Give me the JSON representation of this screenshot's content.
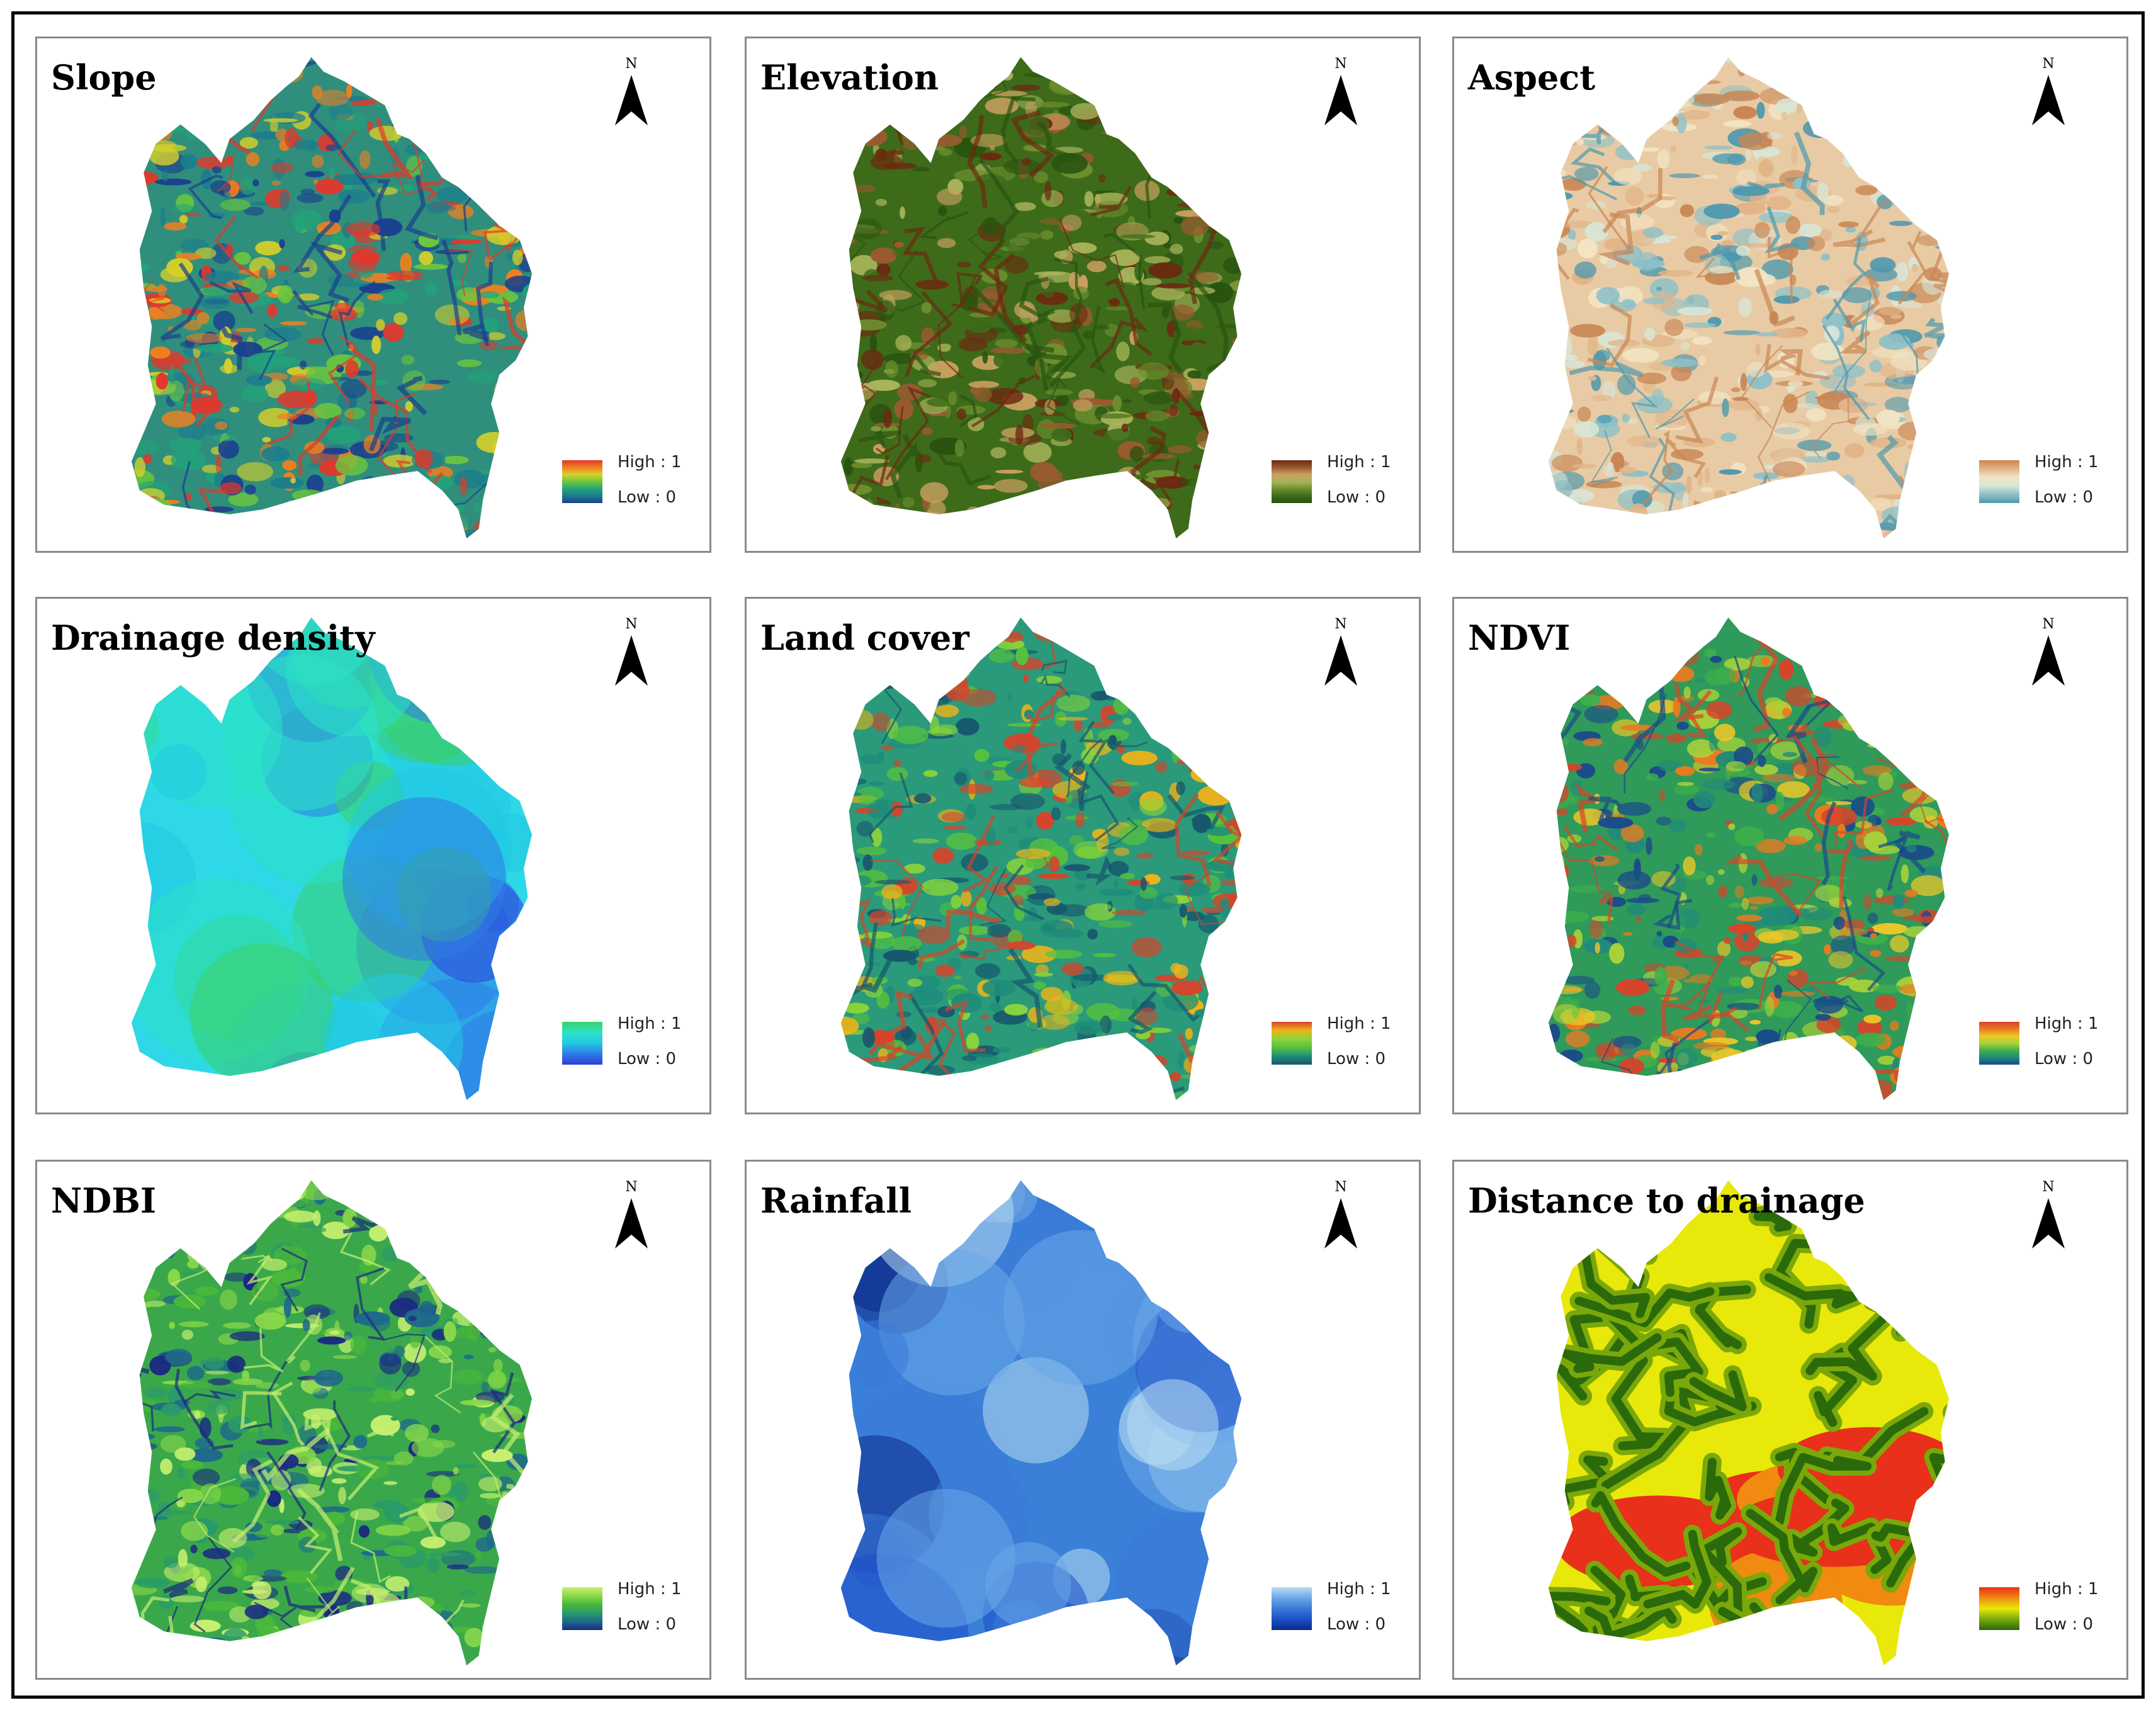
{
  "figure": {
    "panels": [
      {
        "id": "slope",
        "title": "Slope",
        "north": "N",
        "legend_high": "High : 1",
        "legend_low": "Low : 0",
        "colors": [
          "#1a3f8f",
          "#1d7d8c",
          "#22a37a",
          "#6cc63e",
          "#d8d02a",
          "#f08020",
          "#e5362a"
        ],
        "base": "#2f8f7c"
      },
      {
        "id": "elevation",
        "title": "Elevation",
        "north": "N",
        "legend_high": "High : 1",
        "legend_low": "Low : 0",
        "colors": [
          "#29520f",
          "#3d6b1a",
          "#6d8f2e",
          "#a8b45a",
          "#c9a060",
          "#9a5a30",
          "#6b2a10"
        ],
        "base": "#3d6b1a"
      },
      {
        "id": "aspect",
        "title": "Aspect",
        "north": "N",
        "legend_high": "High : 1",
        "legend_low": "Low : 0",
        "colors": [
          "#4f98ad",
          "#8cc0c8",
          "#d8e6d8",
          "#f2e4c4",
          "#e2b488",
          "#c98654"
        ],
        "base": "#e8cba4"
      },
      {
        "id": "drainage-density",
        "title": "Drainage density",
        "north": "N",
        "legend_high": "High : 1",
        "legend_low": "Low : 0",
        "colors": [
          "#2e3fd8",
          "#2f7ae6",
          "#22c8e4",
          "#2ce2c6",
          "#3ad06a"
        ],
        "base": "#2ed8e6"
      },
      {
        "id": "land-cover",
        "title": "Land cover",
        "north": "N",
        "legend_high": "High : 1",
        "legend_low": "Low : 0",
        "colors": [
          "#17566e",
          "#1e8c7a",
          "#57c23c",
          "#8ad43a",
          "#f0b418",
          "#d8432a"
        ],
        "base": "#2a9a7a"
      },
      {
        "id": "ndvi",
        "title": "NDVI",
        "north": "N",
        "legend_high": "High : 1",
        "legend_low": "Low : 0",
        "colors": [
          "#1a4a8a",
          "#218a7a",
          "#3fb04a",
          "#a8d23a",
          "#f0c828",
          "#ea7a20",
          "#d8432a"
        ],
        "base": "#2f9a5a"
      },
      {
        "id": "ndbi",
        "title": "NDBI",
        "north": "N",
        "legend_high": "High : 1",
        "legend_low": "Low : 0",
        "colors": [
          "#1a2a80",
          "#1e6a8a",
          "#2a9a6a",
          "#4ab83a",
          "#8ad84a",
          "#c8f070"
        ],
        "base": "#3aa84a"
      },
      {
        "id": "rainfall",
        "title": "Rainfall",
        "north": "N",
        "legend_high": "High : 1",
        "legend_low": "Low : 0",
        "colors": [
          "#0c2a8a",
          "#1c4ec8",
          "#3a7ad8",
          "#6aa8e8",
          "#b8dcf2"
        ],
        "base": "#3a80d8"
      },
      {
        "id": "distance-to-drainage",
        "title": "Distance to drainage",
        "north": "N",
        "legend_high": "High : 1",
        "legend_low": "Low : 0",
        "colors": [
          "#2a6a0a",
          "#7aa80a",
          "#e8e80a",
          "#f08a10",
          "#e8301a"
        ],
        "base": "#e8e80a"
      }
    ]
  }
}
